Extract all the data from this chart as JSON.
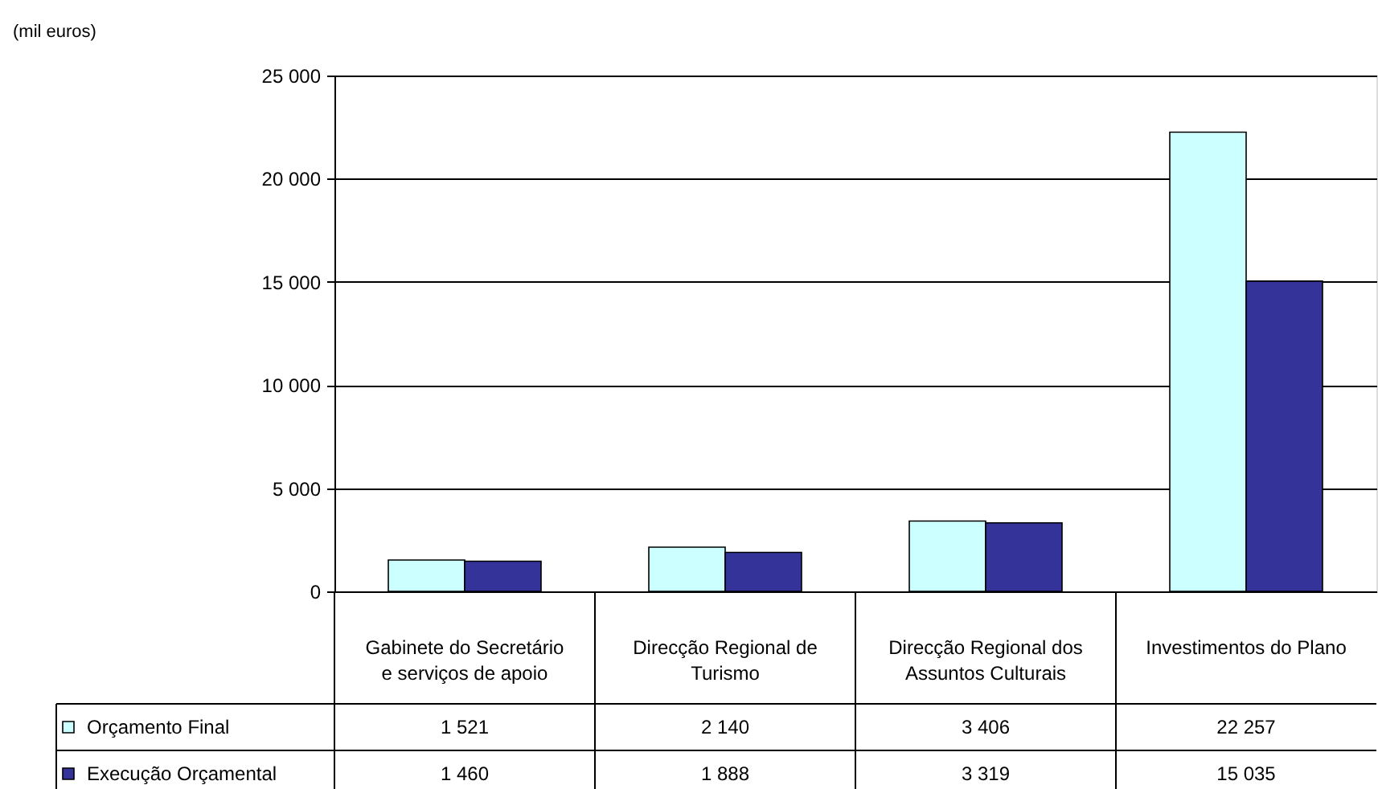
{
  "chart_data": {
    "type": "bar",
    "annotations": [
      "(mil euros)"
    ],
    "categories": [
      "Gabinete do Secretário e serviços de apoio",
      "Direcção Regional de Turismo",
      "Direcção Regional dos Assuntos Culturais",
      "Investimentos do Plano"
    ],
    "series": [
      {
        "name": "Orçamento Final",
        "color": "#ccffff",
        "values": [
          1521,
          2140,
          3406,
          22257
        ]
      },
      {
        "name": "Execução Orçamental",
        "color": "#333399",
        "values": [
          1460,
          1888,
          3319,
          15035
        ]
      }
    ],
    "ylim": [
      0,
      25000
    ],
    "yticks": [
      0,
      5000,
      10000,
      15000,
      20000,
      25000
    ],
    "grid": "y",
    "legend": "bottom left",
    "data_labels": true
  }
}
